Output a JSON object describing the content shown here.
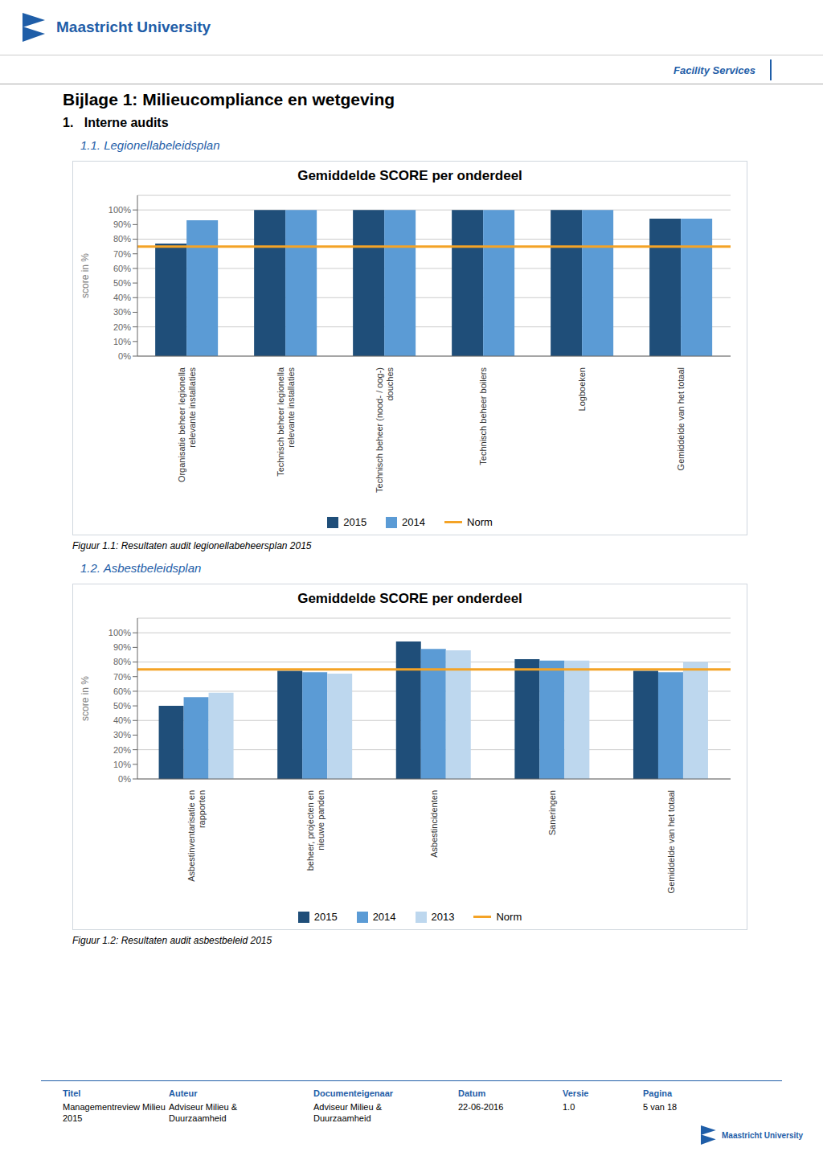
{
  "header": [
    "Maastricht University",
    "Facility Services"
  ],
  "title": "Bijlage 1: Milieucompliance en wetgeving",
  "subtitle": "1.   Interne audits",
  "chart_data": [
    {
      "type": "bar",
      "subtitle": "1.1. Legionellabeleidsplan",
      "title": "Gemiddelde SCORE per onderdeel",
      "caption": "Figuur 1.1: Resultaten audit legionellabeheersplan 2015",
      "categories": [
        "Organisatie beheer legionella\nrelevante installaties",
        "Technisch beheer legionella\nrelevante installaties",
        "Technisch beheer (nood- / oog-)\ndouches",
        "Technisch beheer boilers",
        "Logboeken",
        "Gemiddelde van het totaal"
      ],
      "series": [
        {
          "name": "2015",
          "color": "#1f4e79",
          "values": [
            77,
            100,
            100,
            100,
            100,
            94
          ]
        },
        {
          "name": "2014",
          "color": "#5b9bd5",
          "values": [
            93,
            100,
            100,
            100,
            100,
            94
          ]
        }
      ],
      "reference_lines": [
        {
          "name": "Norm",
          "color": "#f4a326",
          "value": 75
        }
      ],
      "ylabel": "score in %",
      "ylim": [
        0,
        110
      ],
      "yticks": [
        {
          "value": 0,
          "label": "0%"
        },
        {
          "value": 10,
          "label": "10%"
        },
        {
          "value": 20,
          "label": "20%"
        },
        {
          "value": 30,
          "label": "30%"
        },
        {
          "value": 40,
          "label": "40%"
        },
        {
          "value": 50,
          "label": "50%"
        },
        {
          "value": 60,
          "label": "60%"
        },
        {
          "value": 70,
          "label": "70%"
        },
        {
          "value": 80,
          "label": "80%"
        },
        {
          "value": 90,
          "label": "90%"
        },
        {
          "value": 100,
          "label": "100%"
        }
      ],
      "grid": true,
      "legend": "bottom"
    },
    {
      "type": "bar",
      "subtitle": "1.2. Asbestbeleidsplan",
      "title": "Gemiddelde SCORE per onderdeel",
      "caption": "Figuur 1.2: Resultaten audit asbestbeleid 2015",
      "categories": [
        "Asbestinventarisatie en\nrapporten",
        "beheer, projecten en\nnieuwe panden",
        "Asbestincidenten",
        "Saneringen",
        "Gemiddelde van het totaal"
      ],
      "series": [
        {
          "name": "2015",
          "color": "#1f4e79",
          "values": [
            50,
            74,
            94,
            82,
            74
          ]
        },
        {
          "name": "2014",
          "color": "#5b9bd5",
          "values": [
            56,
            73,
            89,
            81,
            73
          ]
        },
        {
          "name": "2013",
          "color": "#bdd7ee",
          "values": [
            59,
            72,
            88,
            81,
            80
          ]
        }
      ],
      "reference_lines": [
        {
          "name": "Norm",
          "color": "#f4a326",
          "value": 75
        }
      ],
      "ylabel": "score in %",
      "ylim": [
        0,
        110
      ],
      "yticks": [
        {
          "value": 0,
          "label": "0%"
        },
        {
          "value": 10,
          "label": "10%"
        },
        {
          "value": 20,
          "label": "20%"
        },
        {
          "value": 30,
          "label": "30%"
        },
        {
          "value": 40,
          "label": "40%"
        },
        {
          "value": 50,
          "label": "50%"
        },
        {
          "value": 60,
          "label": "60%"
        },
        {
          "value": 70,
          "label": "70%"
        },
        {
          "value": 80,
          "label": "80%"
        },
        {
          "value": 90,
          "label": "90%"
        },
        {
          "value": 100,
          "label": "100%"
        }
      ],
      "grid": true,
      "legend": "bottom"
    }
  ],
  "footer": [
    {
      "label": "Titel",
      "text": "Managementreview Milieu\n2015"
    },
    {
      "label": "Auteur",
      "text": "Adviseur Milieu &\nDuurzaamheid"
    },
    {
      "label": "Documenteigenaar",
      "text": "Adviseur Milieu &\nDuurzaamheid"
    },
    {
      "label": "Datum",
      "text": "22-06-2016"
    },
    {
      "label": "Versie",
      "text": "1.0"
    },
    {
      "label": "Pagina",
      "text": "5 van 18"
    }
  ],
  "footer_logo": "Maastricht University"
}
